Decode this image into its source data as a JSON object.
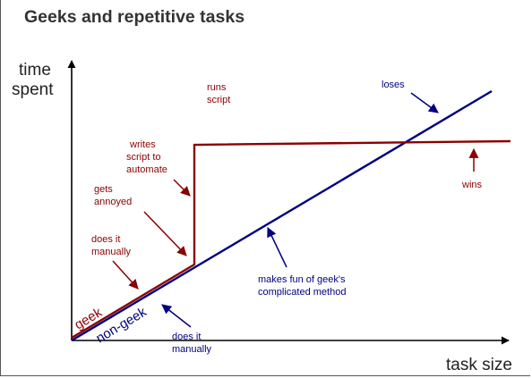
{
  "title": "Geeks and repetitive tasks",
  "axes": {
    "y_label_line1": "time",
    "y_label_line2": "spent",
    "x_label": "task size"
  },
  "lines": {
    "geek_label": "geek",
    "non_geek_label": "non-geek"
  },
  "annotations": {
    "runs_script": [
      "runs",
      "script"
    ],
    "writes_script": [
      "writes",
      "script to",
      "automate"
    ],
    "gets_annoyed": [
      "gets",
      "annoyed"
    ],
    "geek_does_it_manually": [
      "does it",
      "manually"
    ],
    "loses": [
      "loses"
    ],
    "wins": [
      "wins"
    ],
    "makes_fun": [
      "makes fun of geek's",
      "complicated method"
    ],
    "non_geek_does_it_manually": [
      "does it",
      "manually"
    ]
  },
  "colors": {
    "geek": "#8b0000",
    "non_geek": "#000080",
    "axis": "#000000",
    "title": "#333333"
  }
}
